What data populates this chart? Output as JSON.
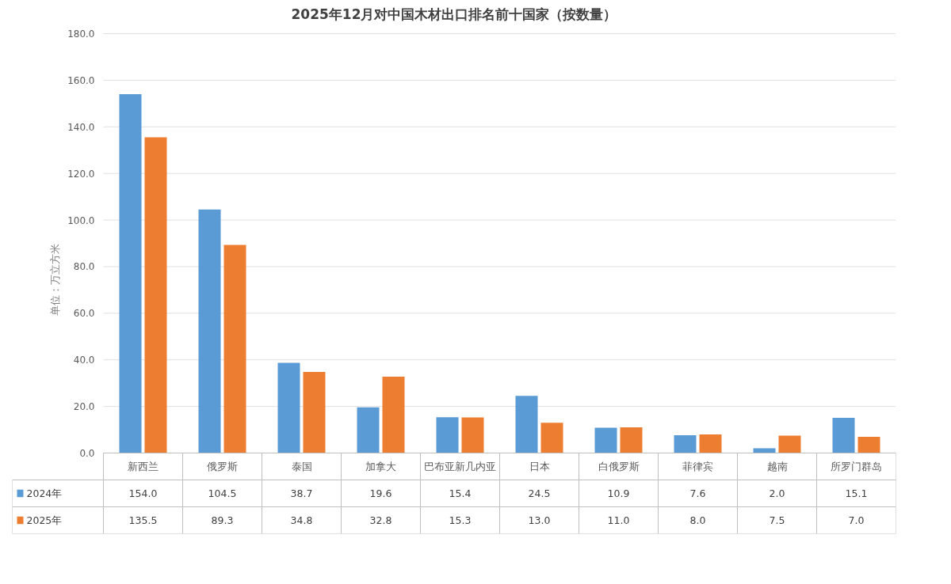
{
  "chart_data": {
    "type": "bar",
    "title": "2025年12月对中国木材出口排名前十国家（按数量）",
    "ylabel": "单位：万立方米",
    "categories": [
      "新西兰",
      "俄罗斯",
      "泰国",
      "加拿大",
      "巴布亚新几内亚",
      "日本",
      "白俄罗斯",
      "菲律宾",
      "越南",
      "所罗门群岛"
    ],
    "series": [
      {
        "name": "2024年",
        "color": "#5b9bd5",
        "values": [
          154.0,
          104.5,
          38.7,
          19.6,
          15.4,
          24.5,
          10.9,
          7.6,
          2.0,
          15.1
        ],
        "value_labels": [
          "154.0",
          "104.5",
          "38.7",
          "19.6",
          "15.4",
          "24.5",
          "10.9",
          "7.6",
          "2.0",
          "15.1"
        ]
      },
      {
        "name": "2025年",
        "color": "#ed7d31",
        "values": [
          135.5,
          89.3,
          34.8,
          32.8,
          15.3,
          13.0,
          11.0,
          8.0,
          7.5,
          7.0
        ],
        "value_labels": [
          "135.5",
          "89.3",
          "34.8",
          "32.8",
          "15.3",
          "13.0",
          "11.0",
          "8.0",
          "7.5",
          "7.0"
        ]
      }
    ],
    "ylim": [
      0,
      180
    ],
    "yticks": [
      {
        "value": 0,
        "label": "0.0"
      },
      {
        "value": 20,
        "label": "20.0"
      },
      {
        "value": 40,
        "label": "40.0"
      },
      {
        "value": 60,
        "label": "60.0"
      },
      {
        "value": 80,
        "label": "80.0"
      },
      {
        "value": 100,
        "label": "100.0"
      },
      {
        "value": 120,
        "label": "120.0"
      },
      {
        "value": 140,
        "label": "140.0"
      },
      {
        "value": 160,
        "label": "160.0"
      },
      {
        "value": 180,
        "label": "180.0"
      }
    ],
    "grid": "y",
    "legend": "bottom left"
  }
}
